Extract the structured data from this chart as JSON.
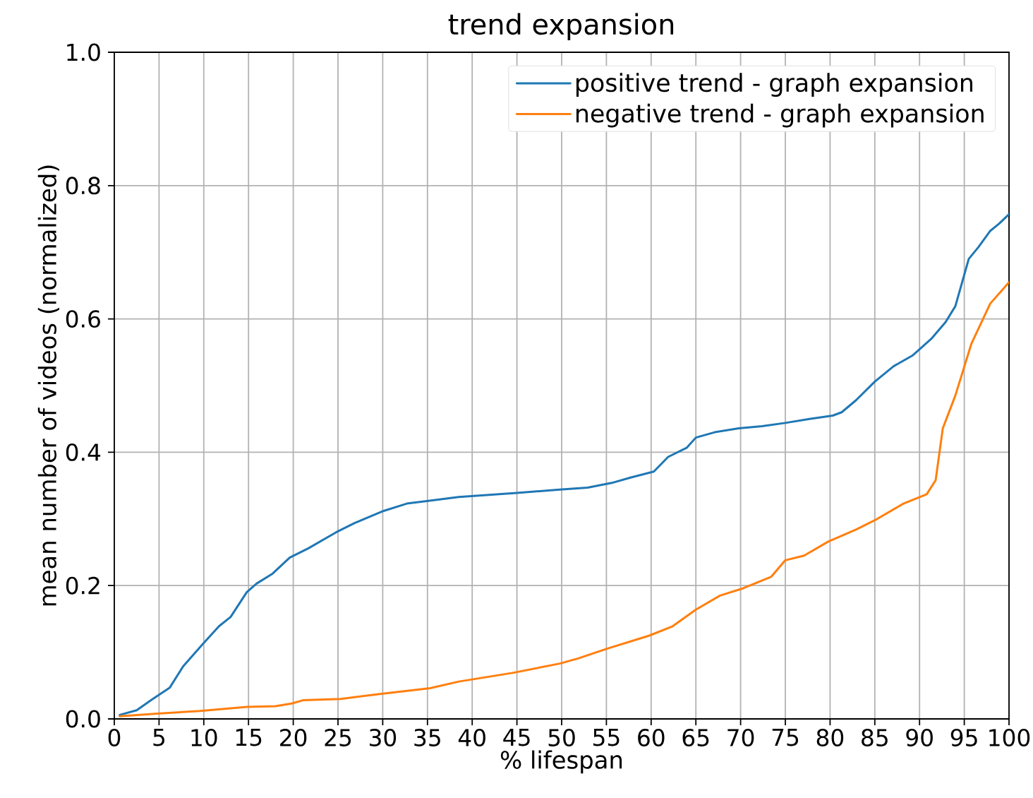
{
  "chart_data": {
    "type": "line",
    "title": "trend expansion",
    "xlabel": "% lifespan",
    "ylabel": "mean number of videos (normalized)",
    "xlim": [
      0,
      100
    ],
    "ylim": [
      0,
      1
    ],
    "xticks": [
      0,
      5,
      10,
      15,
      20,
      25,
      30,
      35,
      40,
      45,
      50,
      55,
      60,
      65,
      70,
      75,
      80,
      85,
      90,
      95,
      100
    ],
    "yticks": [
      {
        "value": 0,
        "label": "0.0"
      },
      {
        "value": 0.2,
        "label": "0.2"
      },
      {
        "value": 0.4,
        "label": "0.4"
      },
      {
        "value": 0.6,
        "label": "0.6"
      },
      {
        "value": 0.8,
        "label": "0.8"
      },
      {
        "value": 1,
        "label": "1.0"
      }
    ],
    "grid": true,
    "legend": "top right",
    "line_style": "solid",
    "series": [
      {
        "name": "positive trend - graph expansion",
        "color": "#1f77b4",
        "x": [
          0.6,
          2.5,
          4.3,
          6.2,
          7.7,
          9.8,
          11.7,
          13,
          14.8,
          15.9,
          17.7,
          19.6,
          21.7,
          24.8,
          26.9,
          30.1,
          32.7,
          35.1,
          38.5,
          45,
          49.8,
          52.9,
          55.6,
          57.7,
          60.3,
          61.9,
          64,
          65,
          67.1,
          69.8,
          72.4,
          75,
          77.7,
          80.3,
          81.3,
          82.9,
          85,
          87.1,
          89.2,
          91.3,
          92.9,
          94,
          95.5,
          96.6,
          97.9,
          98.9,
          100
        ],
        "values": [
          0.006,
          0.013,
          0.03,
          0.047,
          0.079,
          0.111,
          0.139,
          0.153,
          0.19,
          0.203,
          0.218,
          0.242,
          0.256,
          0.28,
          0.294,
          0.312,
          0.323,
          0.327,
          0.333,
          0.339,
          0.344,
          0.347,
          0.354,
          0.362,
          0.371,
          0.393,
          0.407,
          0.422,
          0.43,
          0.436,
          0.439,
          0.444,
          0.45,
          0.455,
          0.46,
          0.478,
          0.506,
          0.529,
          0.545,
          0.57,
          0.595,
          0.619,
          0.69,
          0.708,
          0.732,
          0.743,
          0.757
        ]
      },
      {
        "name": "negative trend - graph expansion",
        "color": "#ff7f0e",
        "x": [
          0.6,
          4.8,
          9.6,
          14.8,
          18,
          19.8,
          21.1,
          25.3,
          29.5,
          35.3,
          38.5,
          44.5,
          49.8,
          51.9,
          55,
          59.8,
          62.4,
          65,
          67.7,
          70.3,
          73.4,
          75,
          77.1,
          79.8,
          82.9,
          85,
          88.2,
          90.8,
          91.8,
          92.6,
          94,
          95.8,
          97.9,
          100
        ],
        "values": [
          0.004,
          0.008,
          0.012,
          0.018,
          0.019,
          0.023,
          0.028,
          0.03,
          0.037,
          0.046,
          0.056,
          0.069,
          0.083,
          0.091,
          0.105,
          0.125,
          0.139,
          0.164,
          0.185,
          0.196,
          0.213,
          0.238,
          0.245,
          0.266,
          0.284,
          0.298,
          0.323,
          0.337,
          0.358,
          0.436,
          0.485,
          0.563,
          0.623,
          0.655
        ]
      }
    ]
  }
}
